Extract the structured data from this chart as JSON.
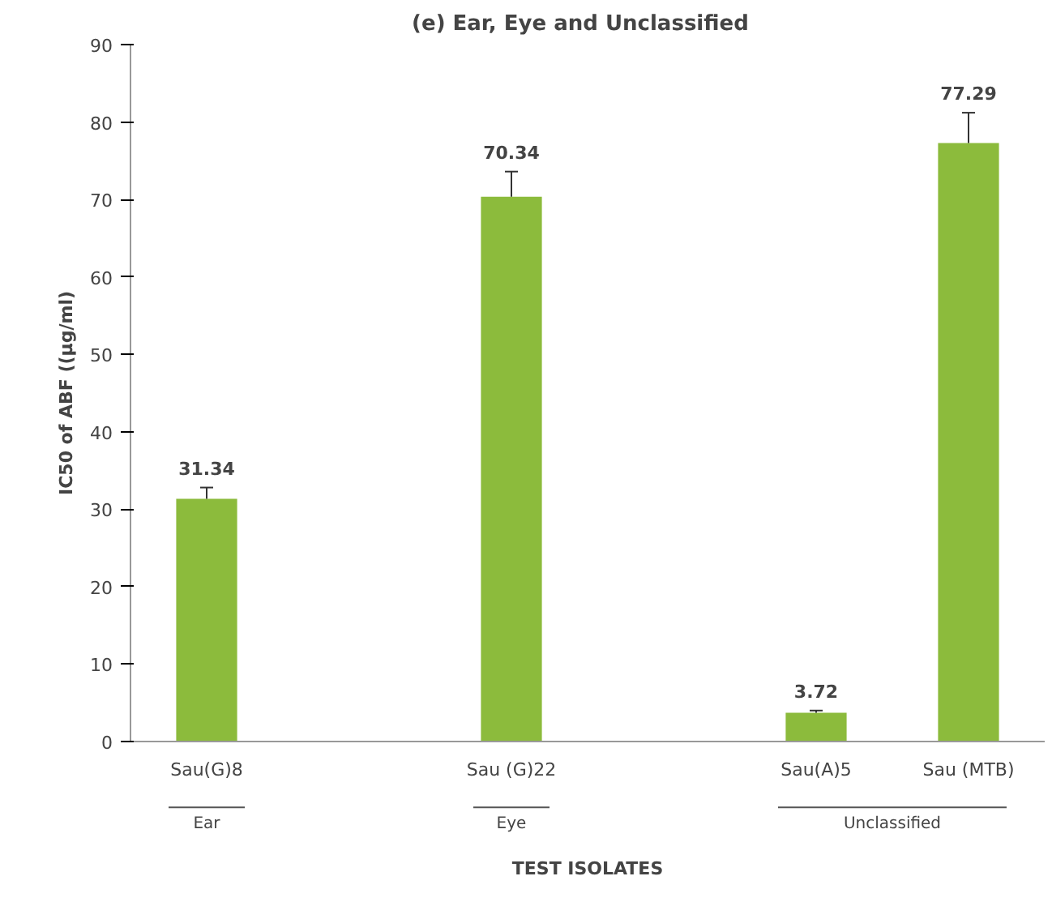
{
  "chart_data": {
    "type": "bar",
    "title": "(e)  Ear, Eye  and Unclassified",
    "xlabel": "TEST ISOLATES",
    "ylabel": "IC50 of ABF ((µg/ml)",
    "categories": [
      "Sau(G)8",
      null,
      "Sau (G)22",
      null,
      "Sau(A)5",
      "Sau (MTB)"
    ],
    "values": [
      31.34,
      null,
      70.34,
      null,
      3.72,
      77.29
    ],
    "errors": [
      [
        31.34,
        32.8
      ],
      null,
      [
        70.34,
        73.6
      ],
      null,
      [
        3.72,
        4.0
      ],
      [
        77.29,
        81.2
      ]
    ],
    "color": "#8cbb3c",
    "data_labels": true,
    "grid": false,
    "ylim": [
      0,
      90
    ],
    "yticks": [
      0,
      10,
      20,
      30,
      40,
      50,
      60,
      70,
      80,
      90
    ],
    "annotations": [
      "Ear",
      "Eye",
      "Unclassified"
    ]
  }
}
